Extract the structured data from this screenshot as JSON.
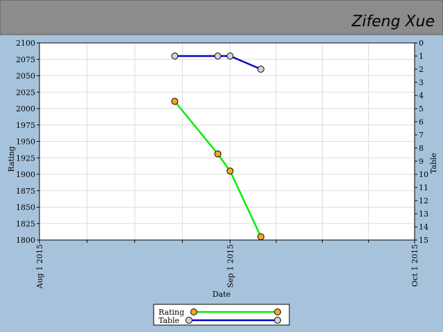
{
  "header": {
    "user": "Zifeng Xue"
  },
  "chart_data": {
    "type": "line",
    "x_label": "Date",
    "y_label": "Rating",
    "y2_label": "Table",
    "x": [
      "2015-08-23",
      "2015-08-30",
      "2015-09-01",
      "2015-09-06"
    ],
    "xlim": [
      "2015-08-01",
      "2015-10-01"
    ],
    "xticks": [
      {
        "value": "2015-08-01",
        "label": "Aug 1 2015"
      },
      {
        "value": "2015-09-01",
        "label": "Sep 1 2015"
      },
      {
        "value": "2015-10-01",
        "label": "Oct 1 2015"
      }
    ],
    "ylim": [
      1800,
      2100
    ],
    "yticks": [
      1800,
      1825,
      1850,
      1875,
      1900,
      1925,
      1950,
      1975,
      2000,
      2025,
      2050,
      2075,
      2100
    ],
    "y2lim": [
      15,
      0
    ],
    "y2ticks": [
      0,
      1,
      2,
      3,
      4,
      5,
      6,
      7,
      8,
      9,
      10,
      11,
      12,
      13,
      14,
      15
    ],
    "grid": true,
    "series": [
      {
        "name": "Rating",
        "color": "#00ee00",
        "marker_color": "#f5a623",
        "values": [
          2011,
          1931,
          1905,
          1805
        ]
      },
      {
        "name": "Table",
        "color": "#0000cc",
        "marker_color": "#d3d3d3",
        "axis": "y2",
        "values": [
          1,
          1,
          1,
          2
        ]
      }
    ]
  }
}
